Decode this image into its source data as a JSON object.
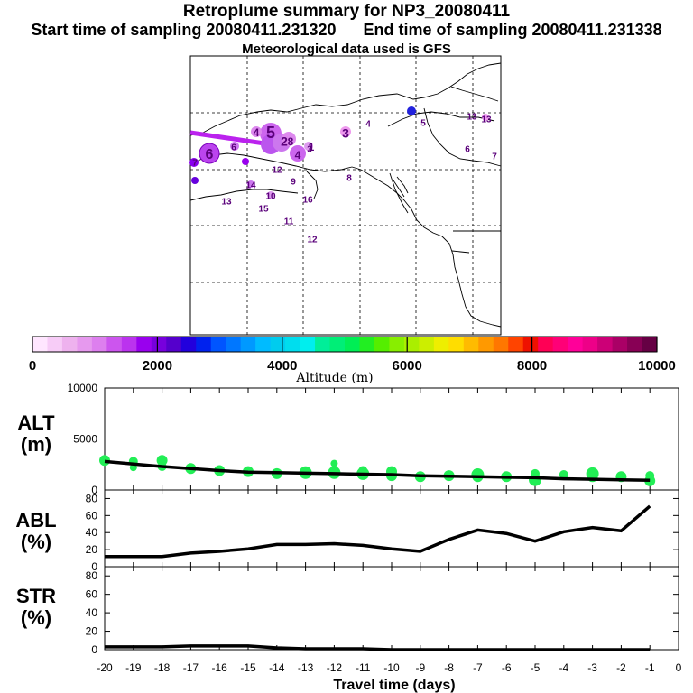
{
  "header": {
    "title": "Retroplume summary for NP3_20080411",
    "subtitle": "Start time of sampling 20080411.231320      End time of sampling 20080411.231338",
    "met_line": "Meteorological data used is GFS"
  },
  "colorbar": {
    "ticks": [
      "0",
      "2000",
      "4000",
      "6000",
      "8000",
      "10000"
    ],
    "label": "Altitude (m)",
    "colors": [
      "#ffe6ff",
      "#f7ccf7",
      "#eeb2ee",
      "#e699ee",
      "#dd7fee",
      "#cc55ee",
      "#bb33ee",
      "#9900ee",
      "#7700dd",
      "#5500cc",
      "#2200dd",
      "#0022ee",
      "#0055ff",
      "#0077ff",
      "#0099ff",
      "#00bbff",
      "#00ccee",
      "#00ddee",
      "#00eeee",
      "#00ee99",
      "#00ee77",
      "#00ee55",
      "#22ee22",
      "#55ee00",
      "#88ee00",
      "#aaee00",
      "#ccee00",
      "#eeee00",
      "#ffdd00",
      "#ffbb00",
      "#ff9900",
      "#ff7700",
      "#ff4400",
      "#ee1100",
      "#ff0055",
      "#ff0077",
      "#ff0099",
      "#ee0088",
      "#cc0077",
      "#aa0066",
      "#880055",
      "#660044"
    ]
  },
  "map": {
    "labels": [
      {
        "t": "5",
        "s": 18
      },
      {
        "t": "4",
        "s": 12
      },
      {
        "t": "2",
        "s": 14
      },
      {
        "t": "3",
        "s": 14
      },
      {
        "t": "8",
        "s": 12
      },
      {
        "t": "1",
        "s": 12
      },
      {
        "t": "4",
        "s": 12
      },
      {
        "t": "3",
        "s": 10
      },
      {
        "t": "6",
        "s": 16
      },
      {
        "t": "6",
        "s": 10
      },
      {
        "t": "7",
        "s": 10
      },
      {
        "t": "12",
        "s": 10
      },
      {
        "t": "9",
        "s": 10
      },
      {
        "t": "14",
        "s": 10
      },
      {
        "t": "16",
        "s": 10
      },
      {
        "t": "10",
        "s": 10
      },
      {
        "t": "13",
        "s": 10
      },
      {
        "t": "15",
        "s": 10
      },
      {
        "t": "11",
        "s": 10
      },
      {
        "t": "12",
        "s": 10
      },
      {
        "t": "8",
        "s": 10
      },
      {
        "t": "4",
        "s": 10
      },
      {
        "t": "5",
        "s": 10
      },
      {
        "t": "13",
        "s": 10
      },
      {
        "t": "6",
        "s": 10
      },
      {
        "t": "7",
        "s": 10
      },
      {
        "t": "13",
        "s": 10
      }
    ]
  },
  "chart_data": [
    {
      "type": "scatter+line",
      "panel_label": "ALT\n(m)",
      "ylabel": "ALT (m)",
      "ylim": [
        0,
        10000
      ],
      "yticks": [
        "0",
        "5000",
        "10000"
      ],
      "xlim": [
        -20,
        0
      ],
      "line": {
        "x": [
          -20,
          -19,
          -18,
          -17,
          -16,
          -15,
          -14,
          -13,
          -12,
          -11,
          -10,
          -9,
          -8,
          -7,
          -6,
          -5,
          -4,
          -3,
          -2,
          -1
        ],
        "y": [
          2800,
          2550,
          2300,
          2100,
          1900,
          1750,
          1700,
          1650,
          1600,
          1550,
          1500,
          1400,
          1350,
          1300,
          1250,
          1200,
          1100,
          1050,
          1000,
          950
        ]
      },
      "points": {
        "x": [
          -20,
          -19,
          -19,
          -18,
          -18,
          -17,
          -16,
          -15,
          -14,
          -13,
          -12,
          -12,
          -11,
          -11,
          -10,
          -10,
          -9,
          -8,
          -7,
          -7,
          -6,
          -5,
          -5,
          -4,
          -3,
          -3,
          -2,
          -1,
          -1
        ],
        "y": [
          2900,
          2800,
          2200,
          2900,
          2300,
          2100,
          1900,
          1800,
          1600,
          1700,
          2600,
          1700,
          1900,
          1600,
          1800,
          1400,
          1300,
          1400,
          1500,
          1300,
          1300,
          1600,
          1000,
          1500,
          1600,
          1300,
          1300,
          1400,
          900
        ],
        "size": [
          6,
          5,
          4,
          6,
          5,
          6,
          6,
          6,
          6,
          7,
          4,
          7,
          5,
          7,
          6,
          6,
          6,
          6,
          7,
          6,
          6,
          5,
          7,
          5,
          7,
          6,
          6,
          5,
          6
        ]
      }
    },
    {
      "type": "line",
      "panel_label": "ABL\n(%)",
      "ylabel": "ABL (%)",
      "ylim": [
        0,
        90
      ],
      "yticks": [
        "0",
        "20",
        "40",
        "60",
        "80"
      ],
      "x": [
        -20,
        -19,
        -18,
        -17,
        -16,
        -15,
        -14,
        -13,
        -12,
        -11,
        -10,
        -9,
        -8,
        -7,
        -6,
        -5,
        -4,
        -3,
        -2,
        -1
      ],
      "y": [
        12,
        12,
        12,
        16,
        18,
        21,
        26,
        26,
        27,
        25,
        21,
        18,
        32,
        43,
        39,
        30,
        41,
        46,
        42,
        71
      ]
    },
    {
      "type": "line",
      "panel_label": "STR\n(%)",
      "ylabel": "STR (%)",
      "ylim": [
        0,
        90
      ],
      "yticks": [
        "0",
        "20",
        "40",
        "60",
        "80"
      ],
      "x": [
        -20,
        -19,
        -18,
        -17,
        -16,
        -15,
        -14,
        -13,
        -12,
        -11,
        -10,
        -9,
        -8,
        -7,
        -6,
        -5,
        -4,
        -3,
        -2,
        -1
      ],
      "y": [
        3,
        3,
        3,
        4,
        4,
        4,
        2,
        1,
        1,
        1,
        0,
        0,
        0,
        0,
        0,
        0,
        0,
        0,
        0,
        0
      ]
    },
    {
      "type": "axis",
      "xlabel": "Travel time (days)",
      "xticks": [
        "-20",
        "-19",
        "-18",
        "-17",
        "-16",
        "-15",
        "-14",
        "-13",
        "-12",
        "-11",
        "-10",
        "-9",
        "-8",
        "-7",
        "-6",
        "-5",
        "-4",
        "-3",
        "-2",
        "-1",
        "0"
      ]
    }
  ]
}
